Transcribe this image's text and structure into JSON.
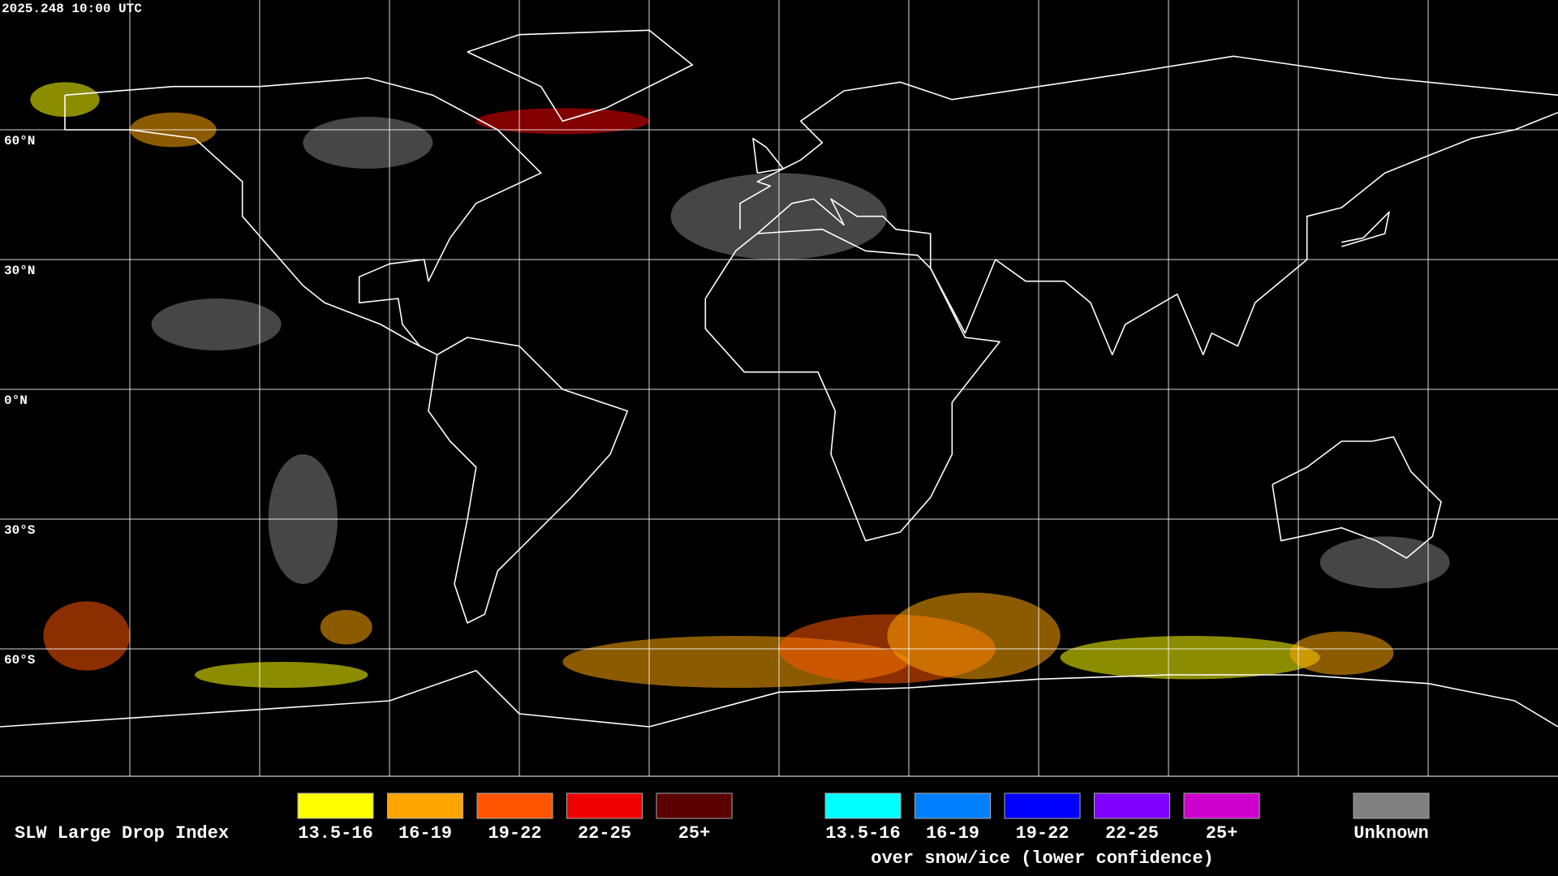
{
  "header": {
    "timestamp": "2025.248 10:00 UTC"
  },
  "latitude_labels": [
    "60°N",
    "30°N",
    "0°N",
    "30°S",
    "60°S"
  ],
  "legend": {
    "title": "SLW Large Drop Index",
    "groups": [
      {
        "entries": [
          {
            "label": "13.5-16",
            "color": "#ffff00"
          },
          {
            "label": "16-19",
            "color": "#ffa500"
          },
          {
            "label": "19-22",
            "color": "#ff5500"
          },
          {
            "label": "22-25",
            "color": "#ee0000"
          },
          {
            "label": "25+",
            "color": "#5a0000"
          }
        ]
      },
      {
        "entries": [
          {
            "label": "13.5-16",
            "color": "#00ffff"
          },
          {
            "label": "16-19",
            "color": "#0080ff"
          },
          {
            "label": "19-22",
            "color": "#0000ff"
          },
          {
            "label": "22-25",
            "color": "#7f00ff"
          },
          {
            "label": "25+",
            "color": "#cc00cc"
          }
        ],
        "note": "over snow/ice (lower confidence)"
      },
      {
        "entries": [
          {
            "label": "Unknown",
            "color": "#808080"
          }
        ]
      }
    ]
  }
}
